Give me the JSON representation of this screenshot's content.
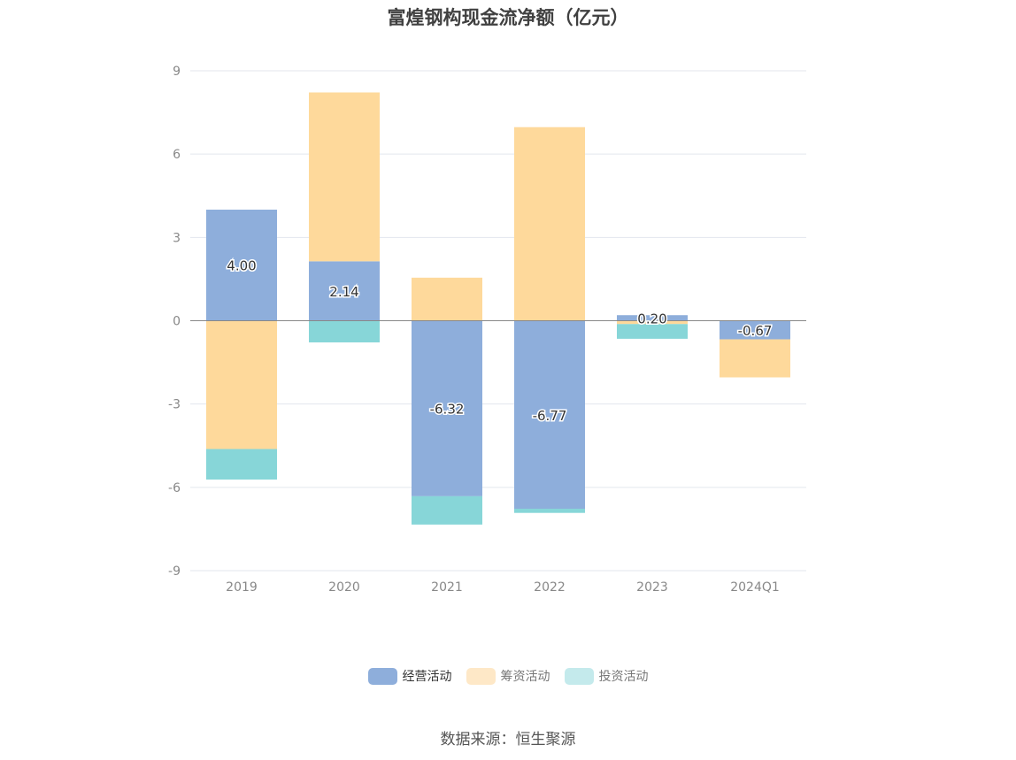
{
  "chart_data": {
    "type": "bar",
    "stacked": true,
    "title": "富煌钢构现金流净额（亿元）",
    "categories": [
      "2019",
      "2020",
      "2021",
      "2022",
      "2023",
      "2024Q1"
    ],
    "series": [
      {
        "name": "经营活动",
        "color": "#8eaedb",
        "values": [
          4.0,
          2.14,
          -6.32,
          -6.77,
          0.2,
          -0.67
        ]
      },
      {
        "name": "筹资活动",
        "color": "#fed99b",
        "legend_color": "#fee8c7",
        "values": [
          -4.62,
          6.08,
          1.55,
          6.97,
          -0.12,
          -1.37
        ]
      },
      {
        "name": "投资活动",
        "color": "#87d6d8",
        "legend_color": "#c4eaec",
        "values": [
          -1.1,
          -0.78,
          -1.02,
          -0.15,
          -0.53,
          0.0
        ]
      }
    ],
    "data_labels": [
      "4.00",
      "2.14",
      "-6.32",
      "-6.77",
      "0.20",
      "-0.67"
    ],
    "yticks": [
      "9",
      "6",
      "3",
      "0",
      "-3",
      "-6",
      "-9"
    ],
    "ylim": [
      -9,
      9
    ],
    "grid": true,
    "legend_position": "bottom"
  },
  "source": "数据来源：恒生聚源"
}
